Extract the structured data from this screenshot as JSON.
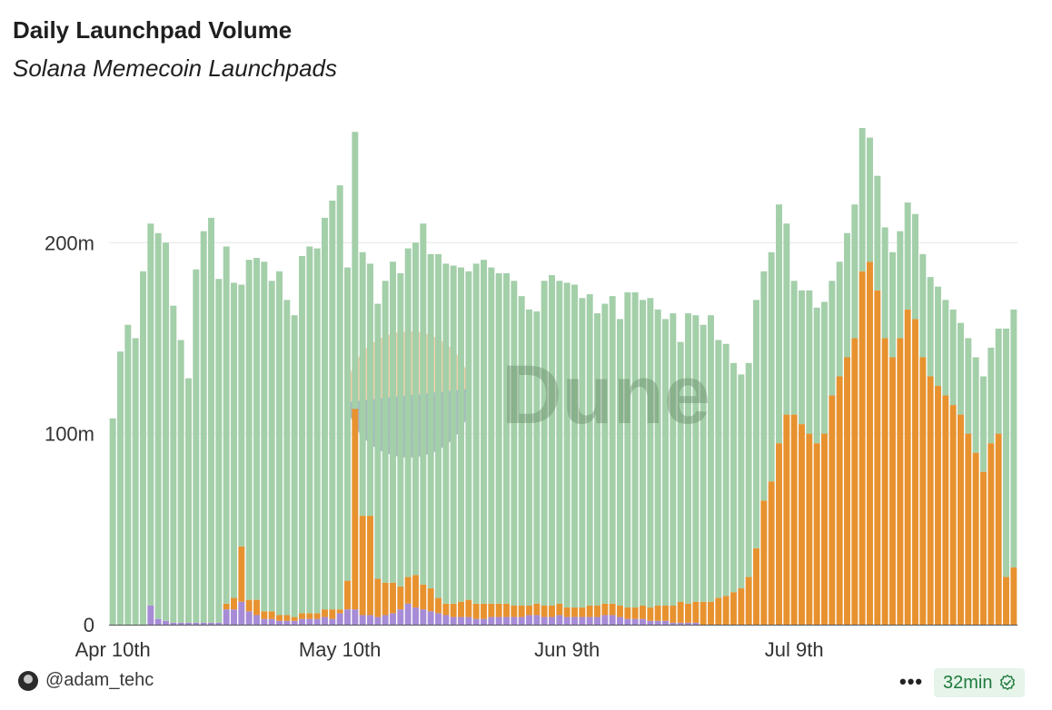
{
  "header": {
    "title": "Daily Launchpad Volume",
    "subtitle": "Solana Memecoin Launchpads"
  },
  "footer": {
    "author": "@adam_tehc",
    "freshness": "32min",
    "more_label": "•••"
  },
  "colors": {
    "green": "#a3cfa9",
    "orange": "#e7922f",
    "purple": "#a68bd6",
    "grid": "#e6e6e6",
    "watermark": "#6b8f6b"
  },
  "watermark": "Dune",
  "chart_data": {
    "type": "bar",
    "stacked": true,
    "title": "Daily Launchpad Volume",
    "subtitle": "Solana Memecoin Launchpads",
    "xlabel": "",
    "ylabel": "",
    "ylim": [
      0,
      250
    ],
    "y_ticks": [
      {
        "value": 0,
        "label": "0"
      },
      {
        "value": 100,
        "label": "100m"
      },
      {
        "value": 200,
        "label": "200m"
      }
    ],
    "x_ticks": [
      {
        "index": 0,
        "label": "Apr 10th"
      },
      {
        "index": 30,
        "label": "May 10th"
      },
      {
        "index": 60,
        "label": "Jun 9th"
      },
      {
        "index": 90,
        "label": "Jul 9th"
      }
    ],
    "unit": "millions USD",
    "series": [
      {
        "name": "purple",
        "color": "#a68bd6",
        "values": [
          0,
          0,
          0,
          0,
          0,
          10,
          3,
          2,
          1,
          1,
          1,
          1,
          1,
          1,
          1,
          8,
          8,
          12,
          7,
          5,
          3,
          3,
          2,
          2,
          2,
          3,
          3,
          3,
          4,
          3,
          6,
          8,
          8,
          5,
          5,
          4,
          5,
          6,
          8,
          11,
          9,
          8,
          7,
          6,
          5,
          4,
          4,
          4,
          3,
          3,
          4,
          4,
          4,
          4,
          4,
          5,
          5,
          4,
          4,
          5,
          4,
          4,
          4,
          4,
          4,
          5,
          5,
          4,
          3,
          3,
          3,
          2,
          2,
          2,
          1,
          1,
          1,
          1,
          0,
          0,
          0,
          0,
          0,
          0,
          0,
          0,
          0,
          0,
          0,
          0,
          0,
          0,
          0,
          0,
          0,
          0,
          0,
          0,
          0,
          0,
          0,
          0,
          0,
          0,
          0,
          0,
          0,
          0,
          0,
          0,
          0,
          0,
          0,
          0,
          0,
          0,
          0,
          0,
          0,
          0
        ]
      },
      {
        "name": "orange",
        "color": "#e7922f",
        "values": [
          0,
          0,
          0,
          0,
          0,
          0,
          0,
          0,
          0,
          0,
          0,
          0,
          0,
          0,
          0,
          3,
          6,
          29,
          6,
          8,
          4,
          4,
          3,
          3,
          2,
          3,
          3,
          3,
          4,
          5,
          2,
          15,
          105,
          52,
          52,
          20,
          17,
          16,
          12,
          14,
          17,
          13,
          12,
          8,
          6,
          7,
          8,
          9,
          8,
          8,
          7,
          7,
          7,
          6,
          6,
          5,
          6,
          6,
          6,
          6,
          5,
          5,
          5,
          6,
          6,
          6,
          6,
          6,
          6,
          6,
          7,
          7,
          8,
          8,
          9,
          11,
          10,
          11,
          12,
          12,
          14,
          15,
          17,
          19,
          25,
          40,
          65,
          75,
          95,
          110,
          110,
          105,
          100,
          95,
          100,
          120,
          130,
          140,
          150,
          185,
          190,
          175,
          150,
          140,
          150,
          165,
          160,
          140,
          130,
          125,
          120,
          115,
          110,
          100,
          90,
          80,
          95,
          100,
          25,
          30
        ]
      },
      {
        "name": "green",
        "color": "#a3cfa9",
        "values": [
          108,
          143,
          157,
          150,
          185,
          200,
          202,
          198,
          166,
          148,
          128,
          185,
          205,
          212,
          180,
          187,
          165,
          137,
          178,
          179,
          183,
          173,
          180,
          165,
          158,
          187,
          192,
          191,
          205,
          214,
          222,
          164,
          145,
          138,
          132,
          144,
          158,
          168,
          164,
          172,
          174,
          189,
          175,
          180,
          178,
          177,
          175,
          172,
          178,
          180,
          176,
          173,
          173,
          170,
          162,
          155,
          153,
          170,
          173,
          169,
          170,
          169,
          162,
          163,
          153,
          157,
          161,
          150,
          165,
          165,
          160,
          162,
          155,
          150,
          153,
          136,
          152,
          150,
          145,
          150,
          135,
          132,
          120,
          112,
          112,
          130,
          120,
          120,
          125,
          100,
          70,
          70,
          75,
          71,
          69,
          60,
          60,
          65,
          70,
          75,
          65,
          60,
          58,
          55,
          56,
          56,
          55,
          54,
          52,
          52,
          50,
          50,
          48,
          50,
          50,
          50,
          50,
          55,
          130,
          135
        ]
      }
    ]
  }
}
